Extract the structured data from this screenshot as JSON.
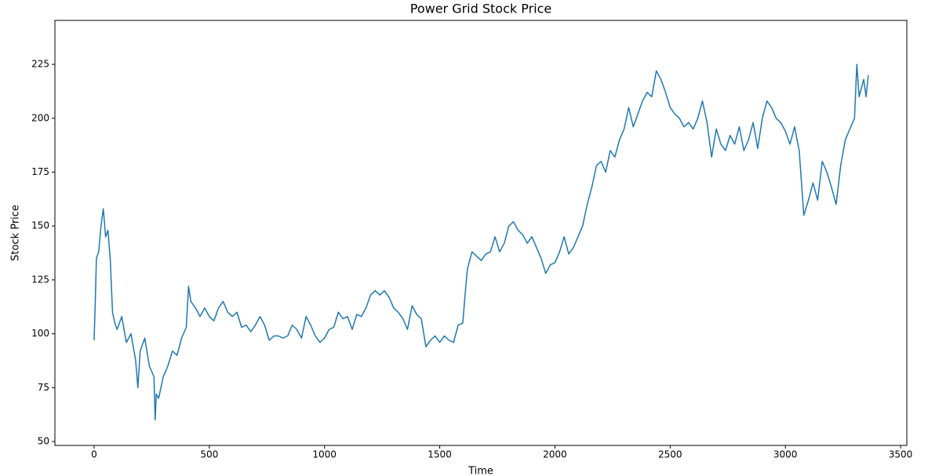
{
  "chart_data": {
    "type": "line",
    "title": "Power Grid Stock Price",
    "x_label": "Time",
    "y_label": "Stock Price",
    "series": [
      {
        "color": "#1f77b4",
        "x": [
          0,
          5,
          10,
          20,
          30,
          40,
          50,
          60,
          70,
          80,
          90,
          100,
          120,
          140,
          160,
          180,
          190,
          200,
          220,
          240,
          260,
          265,
          270,
          280,
          300,
          320,
          340,
          360,
          380,
          400,
          410,
          420,
          440,
          460,
          480,
          500,
          520,
          540,
          560,
          580,
          600,
          620,
          640,
          660,
          680,
          700,
          720,
          740,
          760,
          780,
          800,
          820,
          840,
          860,
          880,
          900,
          920,
          940,
          960,
          980,
          1000,
          1020,
          1040,
          1060,
          1080,
          1100,
          1120,
          1140,
          1160,
          1180,
          1200,
          1220,
          1240,
          1260,
          1280,
          1300,
          1320,
          1340,
          1360,
          1380,
          1400,
          1420,
          1440,
          1460,
          1480,
          1500,
          1520,
          1540,
          1560,
          1580,
          1600,
          1610,
          1620,
          1640,
          1660,
          1680,
          1700,
          1720,
          1740,
          1760,
          1780,
          1800,
          1820,
          1840,
          1860,
          1880,
          1900,
          1920,
          1940,
          1960,
          1980,
          2000,
          2020,
          2040,
          2060,
          2080,
          2100,
          2120,
          2140,
          2160,
          2180,
          2200,
          2220,
          2240,
          2260,
          2280,
          2300,
          2320,
          2340,
          2360,
          2380,
          2400,
          2420,
          2440,
          2460,
          2480,
          2500,
          2520,
          2540,
          2560,
          2580,
          2600,
          2620,
          2640,
          2660,
          2680,
          2700,
          2720,
          2740,
          2760,
          2780,
          2800,
          2820,
          2840,
          2860,
          2880,
          2900,
          2920,
          2940,
          2960,
          2980,
          3000,
          3020,
          3040,
          3060,
          3080,
          3100,
          3120,
          3140,
          3160,
          3180,
          3200,
          3220,
          3240,
          3260,
          3280,
          3300,
          3310,
          3320,
          3340,
          3350,
          3360
        ],
        "values": [
          97,
          114,
          135,
          138,
          150,
          158,
          145,
          148,
          135,
          110,
          105,
          102,
          108,
          96,
          100,
          88,
          75,
          92,
          98,
          85,
          80,
          60,
          72,
          70,
          80,
          85,
          92,
          90,
          98,
          103,
          122,
          115,
          112,
          108,
          112,
          108,
          106,
          112,
          115,
          110,
          108,
          110,
          103,
          104,
          101,
          104,
          108,
          104,
          97,
          99,
          99,
          98,
          99,
          104,
          102,
          98,
          108,
          104,
          99,
          96,
          98,
          102,
          103,
          110,
          107,
          108,
          102,
          109,
          108,
          112,
          118,
          120,
          118,
          120,
          117,
          112,
          110,
          107,
          102,
          113,
          109,
          107,
          94,
          97,
          99,
          96,
          99,
          97,
          96,
          104,
          105,
          118,
          130,
          138,
          136,
          134,
          137,
          138,
          145,
          138,
          142,
          150,
          152,
          148,
          146,
          142,
          145,
          140,
          135,
          128,
          132,
          133,
          138,
          145,
          137,
          140,
          145,
          150,
          160,
          168,
          178,
          180,
          175,
          185,
          182,
          190,
          195,
          205,
          196,
          202,
          208,
          212,
          210,
          222,
          218,
          212,
          205,
          202,
          200,
          196,
          198,
          195,
          200,
          208,
          198,
          182,
          195,
          188,
          185,
          192,
          188,
          196,
          185,
          190,
          198,
          186,
          200,
          208,
          205,
          200,
          198,
          194,
          188,
          196,
          185,
          155,
          162,
          170,
          162,
          180,
          175,
          168,
          160,
          178,
          190,
          195,
          200,
          225,
          210,
          218,
          210,
          220
        ]
      }
    ],
    "xlim": [
      -170,
      3527
    ],
    "ylim": [
      48.2,
      245.4
    ],
    "xticks": [
      0,
      500,
      1000,
      1500,
      2000,
      2500,
      3000,
      3500
    ],
    "yticks": [
      50,
      75,
      100,
      125,
      150,
      175,
      200,
      225
    ]
  }
}
